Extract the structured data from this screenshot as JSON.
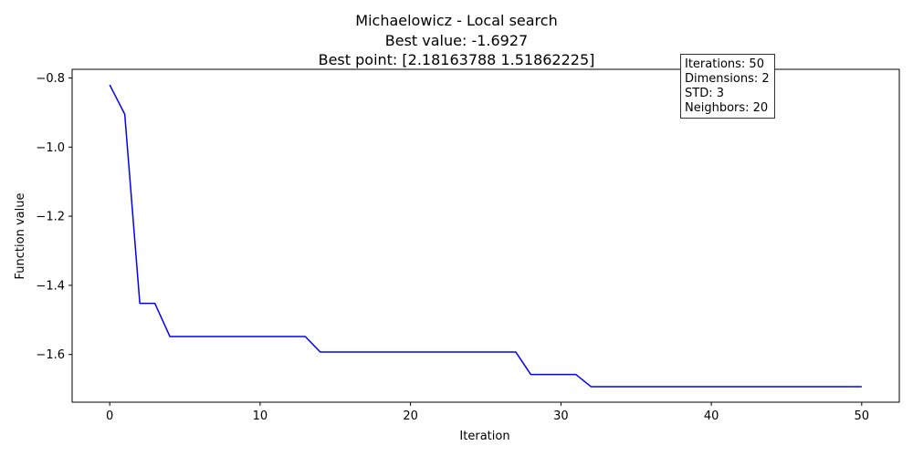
{
  "chart_data": {
    "type": "line",
    "title_lines": [
      "Michaelowicz - Local search",
      "Best value: -1.6927",
      "Best point: [2.18163788 1.51862225]"
    ],
    "xlabel": "Iteration",
    "ylabel": "Function value",
    "xlim": [
      -2.5,
      52.5
    ],
    "ylim": [
      -1.738,
      -0.775
    ],
    "xticks": [
      0,
      10,
      20,
      30,
      40,
      50
    ],
    "xtick_labels": [
      "0",
      "10",
      "20",
      "30",
      "40",
      "50"
    ],
    "yticks": [
      -0.8,
      -1.0,
      -1.2,
      -1.4,
      -1.6
    ],
    "ytick_labels": [
      "−0.8",
      "−1.0",
      "−1.2",
      "−1.4",
      "−1.6"
    ],
    "grid": false,
    "series": [
      {
        "color": "#0000ff",
        "x": [
          0,
          1,
          2,
          3,
          4,
          5,
          6,
          7,
          8,
          9,
          10,
          11,
          12,
          13,
          14,
          15,
          16,
          17,
          18,
          19,
          20,
          21,
          22,
          23,
          24,
          25,
          26,
          27,
          28,
          29,
          30,
          31,
          32,
          33,
          34,
          35,
          36,
          37,
          38,
          39,
          40,
          41,
          42,
          43,
          44,
          45,
          46,
          47,
          48,
          49,
          50
        ],
        "y": [
          -0.82,
          -0.905,
          -1.452,
          -1.452,
          -1.548,
          -1.548,
          -1.548,
          -1.548,
          -1.548,
          -1.548,
          -1.548,
          -1.548,
          -1.548,
          -1.548,
          -1.593,
          -1.593,
          -1.593,
          -1.593,
          -1.593,
          -1.593,
          -1.593,
          -1.593,
          -1.593,
          -1.593,
          -1.593,
          -1.593,
          -1.593,
          -1.593,
          -1.658,
          -1.658,
          -1.658,
          -1.658,
          -1.693,
          -1.693,
          -1.693,
          -1.693,
          -1.693,
          -1.693,
          -1.693,
          -1.693,
          -1.693,
          -1.693,
          -1.693,
          -1.693,
          -1.693,
          -1.693,
          -1.693,
          -1.693,
          -1.693,
          -1.693,
          -1.693
        ]
      }
    ],
    "annotation_lines": [
      "Iterations: 50",
      "Dimensions: 2",
      "STD: 3",
      "Neighbors: 20"
    ]
  }
}
